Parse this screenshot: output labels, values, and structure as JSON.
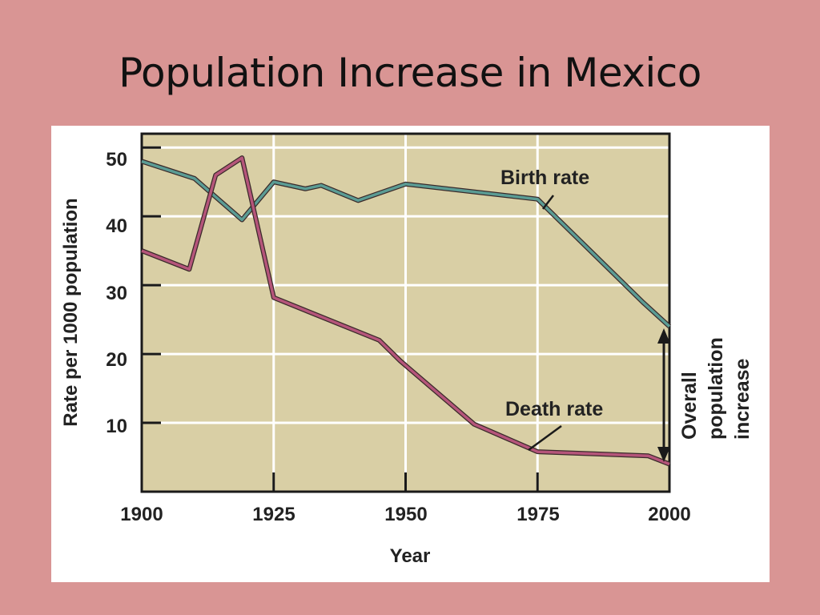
{
  "slide": {
    "title": "Population Increase in Mexico"
  },
  "colors": {
    "background": "#d99594",
    "plot_bg": "#d9cfa5",
    "birth": "#5b9c94",
    "death": "#b5557a"
  },
  "chart_data": {
    "type": "line",
    "title": "",
    "xlabel": "Year",
    "ylabel": "Rate per 1000 population",
    "xlim": [
      1900,
      2000
    ],
    "ylim": [
      0,
      52
    ],
    "xticks": [
      "1900",
      "1925",
      "1950",
      "1975",
      "2000"
    ],
    "yticks": [
      "10",
      "20",
      "30",
      "40",
      "50"
    ],
    "xtick_values": [
      1900,
      1925,
      1950,
      1975,
      2000
    ],
    "ytick_values": [
      10,
      20,
      30,
      40,
      50
    ],
    "grid": true,
    "series": [
      {
        "name": "Birth rate",
        "x": [
          1900,
          1910,
          1919,
          1925,
          1931,
          1934,
          1941,
          1950,
          1975,
          1995,
          2000
        ],
        "y": [
          48,
          45.5,
          39.5,
          45,
          44,
          44.5,
          42.3,
          44.7,
          42.5,
          27.5,
          24
        ]
      },
      {
        "name": "Death rate",
        "x": [
          1900,
          1909,
          1914,
          1919,
          1925,
          1945,
          1949,
          1963,
          1975,
          1996,
          2000
        ],
        "y": [
          35,
          32.3,
          46,
          48.5,
          28.2,
          22,
          19,
          9.8,
          5.8,
          5.2,
          4
        ]
      }
    ],
    "annotations": {
      "birth_label": "Birth rate",
      "death_label": "Death rate",
      "increase_lines": [
        "Overall",
        "population",
        "increase"
      ]
    }
  }
}
